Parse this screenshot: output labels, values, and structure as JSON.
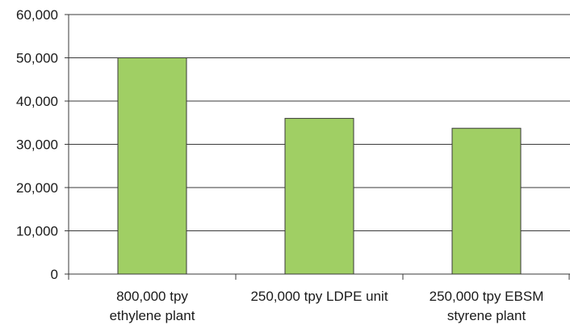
{
  "chart_data": {
    "type": "bar",
    "categories": [
      [
        "800,000 tpy",
        "ethylene plant"
      ],
      [
        "250,000 tpy LDPE unit"
      ],
      [
        "250,000 tpy EBSM",
        "styrene plant"
      ]
    ],
    "values": [
      50000,
      36000,
      33700
    ],
    "title": "",
    "xlabel": "",
    "ylabel": "",
    "ylim": [
      0,
      60000
    ],
    "yticks": [
      "0",
      "10,000",
      "20,000",
      "30,000",
      "40,000",
      "50,000",
      "60,000"
    ],
    "grid": true,
    "legend": "none",
    "colors": {
      "bar_fill": "#a0cf64",
      "bar_stroke": "#3a3a3a",
      "grid": "#3a3a3a",
      "axis": "#3a3a3a"
    }
  }
}
